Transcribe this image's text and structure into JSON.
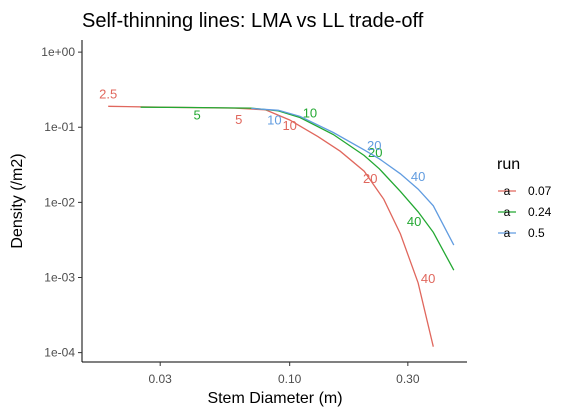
{
  "chart_data": {
    "type": "line",
    "title": "Self-thinning lines: LMA vs LL trade-off",
    "xlabel": "Stem Diameter (m)",
    "ylabel": "Density (/m2)",
    "x_scale": "log10",
    "y_scale": "log10",
    "xlim": [
      0.0145,
      0.52
    ],
    "ylim": [
      7.5e-05,
      1.45
    ],
    "x_ticks": [
      {
        "value": 0.03,
        "label": "0.03"
      },
      {
        "value": 0.1,
        "label": "0.10"
      },
      {
        "value": 0.3,
        "label": "0.30"
      }
    ],
    "y_ticks": [
      {
        "value": 0.0001,
        "label": "1e-04"
      },
      {
        "value": 0.001,
        "label": "1e-03"
      },
      {
        "value": 0.01,
        "label": "1e-02"
      },
      {
        "value": 0.1,
        "label": "1e-01"
      },
      {
        "value": 1,
        "label": "1e+00"
      }
    ],
    "grid": false,
    "legend": {
      "title": "run",
      "position": "right"
    },
    "series": [
      {
        "name": "0.07",
        "color": "#E0675D",
        "points": [
          [
            0.0185,
            0.19
          ],
          [
            0.03,
            0.185
          ],
          [
            0.06,
            0.18
          ],
          [
            0.08,
            0.17
          ],
          [
            0.1,
            0.125
          ],
          [
            0.13,
            0.075
          ],
          [
            0.16,
            0.048
          ],
          [
            0.2,
            0.026
          ],
          [
            0.24,
            0.011
          ],
          [
            0.28,
            0.0038
          ],
          [
            0.33,
            0.00085
          ],
          [
            0.38,
            0.00012
          ]
        ],
        "labels": [
          {
            "text": "2.5",
            "x": 0.0185,
            "y": 0.19
          },
          {
            "text": "5",
            "x": 0.06,
            "y": 0.18
          },
          {
            "text": "10",
            "x": 0.1,
            "y": 0.125
          },
          {
            "text": "20",
            "x": 0.2,
            "y": 0.026
          },
          {
            "text": "40",
            "x": 0.33,
            "y": 0.00085
          }
        ]
      },
      {
        "name": "0.24",
        "color": "#23A832",
        "points": [
          [
            0.025,
            0.185
          ],
          [
            0.04,
            0.183
          ],
          [
            0.07,
            0.18
          ],
          [
            0.09,
            0.165
          ],
          [
            0.11,
            0.135
          ],
          [
            0.15,
            0.08
          ],
          [
            0.2,
            0.042
          ],
          [
            0.23,
            0.028
          ],
          [
            0.28,
            0.014
          ],
          [
            0.33,
            0.0075
          ],
          [
            0.38,
            0.004
          ],
          [
            0.46,
            0.00125
          ]
        ],
        "labels": [
          {
            "text": "5",
            "x": 0.04,
            "y": 0.183
          },
          {
            "text": "10",
            "x": 0.11,
            "y": 0.135
          },
          {
            "text": "20",
            "x": 0.23,
            "y": 0.028
          },
          {
            "text": "40",
            "x": 0.33,
            "y": 0.0075
          }
        ]
      },
      {
        "name": "0.5",
        "color": "#619CE0",
        "points": [
          [
            0.07,
            0.178
          ],
          [
            0.09,
            0.168
          ],
          [
            0.11,
            0.14
          ],
          [
            0.15,
            0.085
          ],
          [
            0.2,
            0.05
          ],
          [
            0.23,
            0.038
          ],
          [
            0.28,
            0.024
          ],
          [
            0.33,
            0.015
          ],
          [
            0.38,
            0.009
          ],
          [
            0.46,
            0.0027
          ]
        ],
        "labels": [
          {
            "text": "10",
            "x": 0.09,
            "y": 0.168
          },
          {
            "text": "20",
            "x": 0.2,
            "y": 0.05
          },
          {
            "text": "40",
            "x": 0.33,
            "y": 0.015
          }
        ]
      }
    ]
  }
}
